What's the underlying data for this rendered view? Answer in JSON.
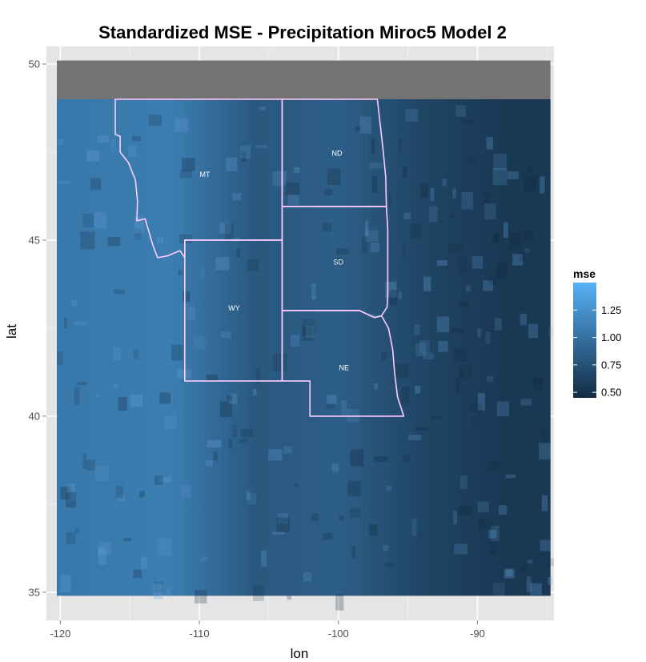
{
  "chart_data": {
    "type": "heatmap",
    "title": "Standardized MSE - Precipitation Miroc5 Model 2",
    "xlabel": "lon",
    "ylabel": "lat",
    "xlim": [
      -121,
      -84.5
    ],
    "ylim": [
      34.2,
      50.5
    ],
    "x_ticks": [
      -120,
      -110,
      -100,
      -90
    ],
    "x_tick_labels": [
      "-120",
      "-110",
      "-100",
      "-90"
    ],
    "y_ticks": [
      35,
      40,
      45,
      50
    ],
    "y_tick_labels": [
      "35",
      "40",
      "45",
      "50"
    ],
    "grid": true,
    "legend": {
      "title": "mse",
      "placement": "right",
      "min": 0.45,
      "max": 1.5,
      "ticks": [
        0.5,
        0.75,
        1.0,
        1.25
      ],
      "tick_labels": [
        "0.50",
        "0.75",
        "1.00",
        "1.25"
      ],
      "low_color": "#132B43",
      "high_color": "#56B1F7"
    },
    "background_color": "#737373",
    "panel_color": "#E5E5E5",
    "border_color": "#FFCCFF",
    "data_extent": {
      "lon": [
        -120.25,
        -84.75
      ],
      "lat": [
        34.9,
        49
      ],
      "northern_extent_lat": 50.1
    },
    "mse_trend": [
      {
        "lon": -119,
        "mse": 1.05
      },
      {
        "lon": -112,
        "mse": 1.1
      },
      {
        "lon": -106,
        "mse": 0.8
      },
      {
        "lon": -100,
        "mse": 0.85
      },
      {
        "lon": -94,
        "mse": 0.65
      },
      {
        "lon": -88,
        "mse": 0.55
      }
    ],
    "states": [
      {
        "name": "MT",
        "label_lon": -109.6,
        "label_lat": 46.8,
        "boundary": [
          [
            -116.05,
            49
          ],
          [
            -104.05,
            49
          ],
          [
            -104.05,
            45
          ],
          [
            -111.05,
            45
          ],
          [
            -111.05,
            44.5
          ],
          [
            -111.4,
            44.7
          ],
          [
            -112.3,
            44.55
          ],
          [
            -113,
            44.5
          ],
          [
            -113.3,
            44.8
          ],
          [
            -113.9,
            45.6
          ],
          [
            -114.5,
            45.55
          ],
          [
            -114.45,
            46.1
          ],
          [
            -114.6,
            46.7
          ],
          [
            -115.1,
            47.2
          ],
          [
            -115.7,
            47.5
          ],
          [
            -115.7,
            47.95
          ],
          [
            -116.05,
            48
          ],
          [
            -116.05,
            49
          ]
        ]
      },
      {
        "name": "ND",
        "label_lon": -100.1,
        "label_lat": 47.4,
        "boundary": [
          [
            -104.05,
            49
          ],
          [
            -97.2,
            49
          ],
          [
            -96.8,
            47.6
          ],
          [
            -96.6,
            46.8
          ],
          [
            -96.55,
            45.95
          ],
          [
            -104.05,
            45.95
          ],
          [
            -104.05,
            49
          ]
        ]
      },
      {
        "name": "SD",
        "label_lon": -100,
        "label_lat": 44.3,
        "boundary": [
          [
            -104.05,
            45.95
          ],
          [
            -96.55,
            45.95
          ],
          [
            -96.45,
            45.3
          ],
          [
            -96.45,
            43.5
          ],
          [
            -96.5,
            43.1
          ],
          [
            -96.9,
            42.85
          ],
          [
            -97.4,
            42.8
          ],
          [
            -98.5,
            43
          ],
          [
            -104.05,
            43
          ],
          [
            -104.05,
            45.95
          ]
        ]
      },
      {
        "name": "WY",
        "label_lon": -107.5,
        "label_lat": 43,
        "boundary": [
          [
            -111.05,
            45
          ],
          [
            -104.05,
            45
          ],
          [
            -104.05,
            41
          ],
          [
            -111.05,
            41
          ],
          [
            -111.05,
            45
          ]
        ]
      },
      {
        "name": "NE",
        "label_lon": -99.6,
        "label_lat": 41.3,
        "boundary": [
          [
            -104.05,
            43
          ],
          [
            -98.5,
            43
          ],
          [
            -97.4,
            42.8
          ],
          [
            -96.9,
            42.85
          ],
          [
            -96.4,
            42.5
          ],
          [
            -96.1,
            41.9
          ],
          [
            -95.95,
            41.2
          ],
          [
            -95.75,
            40.55
          ],
          [
            -95.3,
            40
          ],
          [
            -102.05,
            40
          ],
          [
            -102.05,
            41
          ],
          [
            -104.05,
            41
          ],
          [
            -104.05,
            43
          ]
        ]
      }
    ]
  }
}
